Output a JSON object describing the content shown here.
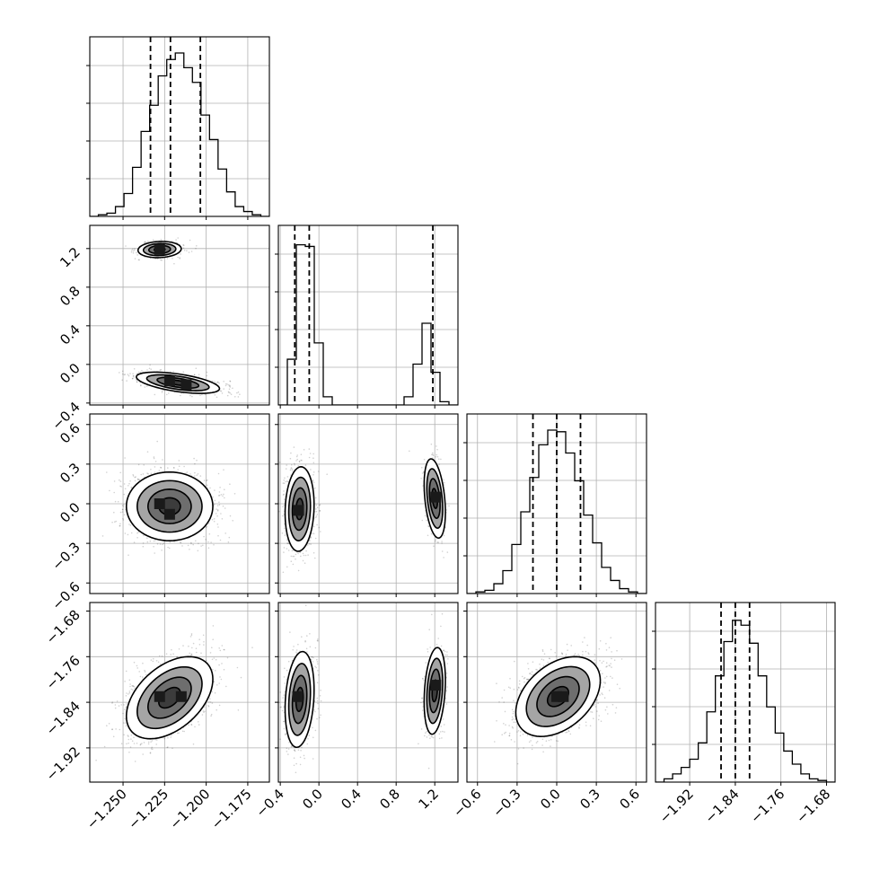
{
  "chart_data": {
    "type": "corner",
    "parameters": [
      {
        "index": 0,
        "range": [
          -1.27,
          -1.162
        ],
        "ticks": [
          -1.25,
          -1.225,
          -1.2,
          -1.175
        ],
        "tick_labels": [
          "−1.250",
          "−1.225",
          "−1.200",
          "−1.175"
        ],
        "quantiles": [
          -1.2335,
          -1.2215,
          -1.2035
        ],
        "hist": [
          0,
          1,
          2,
          6,
          14,
          30,
          52,
          68,
          86,
          96,
          100,
          91,
          82,
          62,
          47,
          29,
          15,
          6,
          3,
          1,
          0
        ]
      },
      {
        "index": 1,
        "range": [
          -0.42,
          1.44
        ],
        "ticks": [
          -0.4,
          0.0,
          0.4,
          0.8,
          1.2
        ],
        "tick_labels": [
          "−0.4",
          "0.0",
          "0.4",
          "0.8",
          "1.2"
        ],
        "quantiles": [
          -0.25,
          -0.1,
          1.18
        ],
        "hist": [
          0,
          28,
          98,
          97,
          38,
          5,
          0,
          0,
          0,
          0,
          0,
          0,
          0,
          0,
          5,
          25,
          50,
          20,
          2,
          0
        ]
      },
      {
        "index": 2,
        "range": [
          -0.68,
          0.68
        ],
        "ticks": [
          -0.6,
          -0.3,
          0.0,
          0.3,
          0.6
        ],
        "tick_labels": [
          "−0.6",
          "−0.3",
          "0.0",
          "0.3",
          "0.6"
        ],
        "quantiles": [
          -0.18,
          0.0,
          0.18
        ],
        "hist": [
          0,
          1,
          2,
          6,
          14,
          30,
          50,
          71,
          91,
          100,
          99,
          86,
          69,
          48,
          31,
          16,
          8,
          3,
          1,
          0
        ]
      },
      {
        "index": 3,
        "range": [
          -1.98,
          -1.665
        ],
        "ticks": [
          -1.92,
          -1.84,
          -1.76,
          -1.68
        ],
        "tick_labels": [
          "−1.92",
          "−1.84",
          "−1.76",
          "−1.68"
        ],
        "quantiles": [
          -1.865,
          -1.84,
          -1.815
        ],
        "hist": [
          0,
          2,
          5,
          9,
          14,
          24,
          43,
          65,
          86,
          99,
          96,
          85,
          65,
          46,
          30,
          19,
          11,
          5,
          2,
          1,
          0
        ]
      }
    ],
    "pairs": [
      {
        "x": 0,
        "y": 1,
        "clusters": [
          {
            "cx": -1.228,
            "cy": 1.19,
            "sx": 0.0065,
            "sy": 0.042,
            "rho": 0.1,
            "weight": 0.35,
            "core": [
              {
                "x": -1.228,
                "y": 1.19
              }
            ]
          },
          {
            "cx": -1.217,
            "cy": -0.19,
            "sx": 0.0125,
            "sy": 0.055,
            "rho": -0.55,
            "weight": 0.65,
            "core": [
              {
                "x": -1.212,
                "y": -0.21
              },
              {
                "x": -1.222,
                "y": -0.17
              }
            ]
          }
        ]
      },
      {
        "x": 0,
        "y": 2,
        "clusters": [
          {
            "cx": -1.222,
            "cy": -0.02,
            "sx": 0.013,
            "sy": 0.13,
            "rho": 0.0,
            "weight": 1.0,
            "core": [
              {
                "x": -1.228,
                "y": 0.0
              },
              {
                "x": -1.222,
                "y": -0.08
              }
            ]
          }
        ]
      },
      {
        "x": 0,
        "y": 3,
        "clusters": [
          {
            "cx": -1.222,
            "cy": -1.832,
            "sx": 0.013,
            "sy": 0.036,
            "rho": 0.45,
            "weight": 1.0,
            "core": [
              {
                "x": -1.228,
                "y": -1.83
              },
              {
                "x": -1.215,
                "y": -1.83
              }
            ]
          }
        ]
      },
      {
        "x": 1,
        "y": 2,
        "clusters": [
          {
            "cx": -0.2,
            "cy": -0.04,
            "sx": 0.075,
            "sy": 0.16,
            "rho": 0.1,
            "weight": 0.65,
            "core": [
              {
                "x": -0.21,
                "y": -0.05
              }
            ]
          },
          {
            "cx": 1.2,
            "cy": 0.04,
            "sx": 0.055,
            "sy": 0.15,
            "rho": -0.35,
            "weight": 0.35,
            "core": [
              {
                "x": 1.21,
                "y": 0.05
              }
            ]
          }
        ]
      },
      {
        "x": 1,
        "y": 3,
        "clusters": [
          {
            "cx": -0.2,
            "cy": -1.835,
            "sx": 0.075,
            "sy": 0.042,
            "rho": 0.2,
            "weight": 0.65,
            "core": [
              {
                "x": -0.22,
                "y": -1.83
              }
            ]
          },
          {
            "cx": 1.2,
            "cy": -1.82,
            "sx": 0.055,
            "sy": 0.038,
            "rho": 0.25,
            "weight": 0.35,
            "core": [
              {
                "x": 1.21,
                "y": -1.81
              }
            ]
          }
        ]
      },
      {
        "x": 2,
        "y": 3,
        "clusters": [
          {
            "cx": 0.01,
            "cy": -1.83,
            "sx": 0.16,
            "sy": 0.035,
            "rho": 0.4,
            "weight": 1.0,
            "core": [
              {
                "x": 0.0,
                "y": -1.83
              },
              {
                "x": 0.05,
                "y": -1.83
              }
            ]
          }
        ]
      }
    ],
    "contour_levels_sigma": [
      0.5,
      1.0,
      1.5,
      2.0
    ],
    "contour_fill": "#ffffff",
    "density_colors": [
      "#f2f2f2",
      "#cfcfcf",
      "#a5a5a5",
      "#6e6e6e",
      "#3c3c3c",
      "#1a1a1a"
    ],
    "scatter_color": "#000000",
    "grid": true,
    "title": "",
    "axis_labels": []
  }
}
